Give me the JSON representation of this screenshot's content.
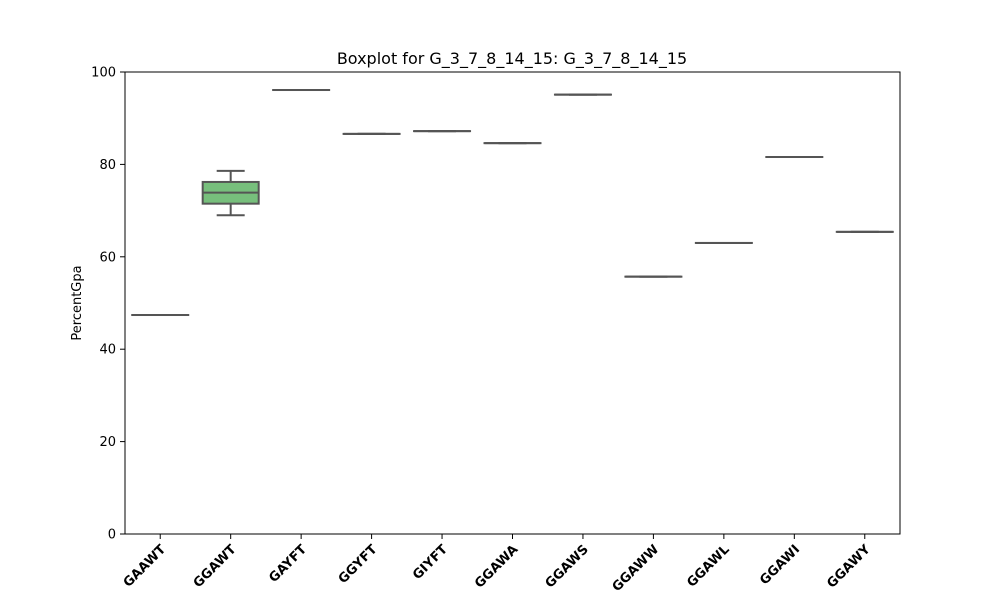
{
  "chart_data": {
    "type": "boxplot",
    "title": "Boxplot for G_3_7_8_14_15: G_3_7_8_14_15",
    "xlabel": "",
    "ylabel": "PercentGpa",
    "ylim": [
      0,
      100
    ],
    "yticks": [
      0,
      20,
      40,
      60,
      80,
      100
    ],
    "grid": false,
    "box_color": "#77bf7c",
    "line_color": "#555555",
    "categories": [
      "GAAWT",
      "GGAWT",
      "GAYFT",
      "GGYFT",
      "GIYFT",
      "GGAWA",
      "GGAWS",
      "GGAWW",
      "GGAWL",
      "GGAWI",
      "GGAWY"
    ],
    "boxes": [
      {
        "category": "GAAWT",
        "whislo": 47.4,
        "q1": 47.4,
        "med": 47.4,
        "q3": 47.4,
        "whishi": 47.4
      },
      {
        "category": "GGAWT",
        "whislo": 69.0,
        "q1": 71.5,
        "med": 73.9,
        "q3": 76.2,
        "whishi": 78.6
      },
      {
        "category": "GAYFT",
        "whislo": 96.1,
        "q1": 96.1,
        "med": 96.1,
        "q3": 96.1,
        "whishi": 96.1
      },
      {
        "category": "GGYFT",
        "whislo": 86.6,
        "q1": 86.6,
        "med": 86.6,
        "q3": 86.6,
        "whishi": 86.6
      },
      {
        "category": "GIYFT",
        "whislo": 87.2,
        "q1": 87.2,
        "med": 87.2,
        "q3": 87.2,
        "whishi": 87.2
      },
      {
        "category": "GGAWA",
        "whislo": 84.6,
        "q1": 84.6,
        "med": 84.6,
        "q3": 84.6,
        "whishi": 84.6
      },
      {
        "category": "GGAWS",
        "whislo": 95.1,
        "q1": 95.1,
        "med": 95.1,
        "q3": 95.1,
        "whishi": 95.1
      },
      {
        "category": "GGAWW",
        "whislo": 55.7,
        "q1": 55.7,
        "med": 55.7,
        "q3": 55.7,
        "whishi": 55.7
      },
      {
        "category": "GGAWL",
        "whislo": 63.0,
        "q1": 63.0,
        "med": 63.0,
        "q3": 63.0,
        "whishi": 63.0
      },
      {
        "category": "GGAWI",
        "whislo": 81.6,
        "q1": 81.6,
        "med": 81.6,
        "q3": 81.6,
        "whishi": 81.6
      },
      {
        "category": "GGAWY",
        "whislo": 65.4,
        "q1": 65.4,
        "med": 65.4,
        "q3": 65.4,
        "whishi": 65.4
      }
    ]
  }
}
